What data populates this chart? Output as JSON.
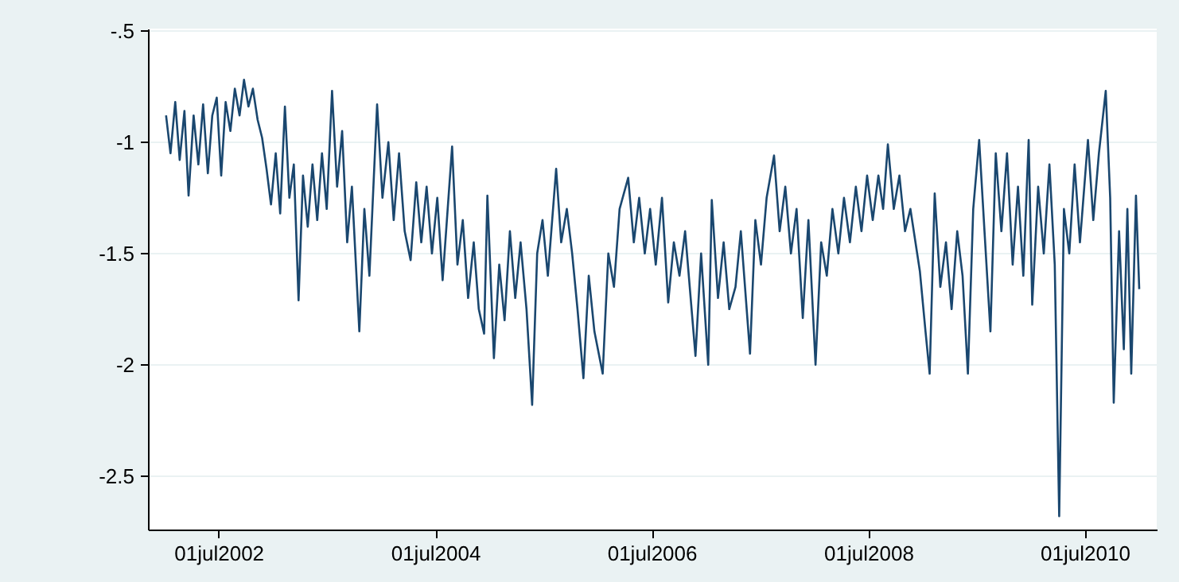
{
  "chart_data": {
    "type": "line",
    "x": [
      "2002-01-05",
      "2002-01-20",
      "2002-02-05",
      "2002-02-20",
      "2002-03-08",
      "2002-03-22",
      "2002-04-08",
      "2002-04-24",
      "2002-05-10",
      "2002-05-26",
      "2002-06-10",
      "2002-06-25",
      "2002-07-10",
      "2002-07-25",
      "2002-08-10",
      "2002-08-25",
      "2002-09-10",
      "2002-09-25",
      "2002-10-10",
      "2002-10-25",
      "2002-11-10",
      "2002-11-25",
      "2002-12-10",
      "2002-12-25",
      "2003-01-10",
      "2003-01-25",
      "2003-02-10",
      "2003-02-25",
      "2003-03-12",
      "2003-03-28",
      "2003-04-12",
      "2003-04-28",
      "2003-05-14",
      "2003-05-30",
      "2003-06-15",
      "2003-07-01",
      "2003-07-19",
      "2003-08-05",
      "2003-08-22",
      "2003-09-08",
      "2003-09-24",
      "2003-10-19",
      "2003-11-05",
      "2003-11-22",
      "2003-12-18",
      "2004-01-05",
      "2004-01-25",
      "2004-02-12",
      "2004-03-01",
      "2004-03-20",
      "2004-04-09",
      "2004-04-28",
      "2004-05-15",
      "2004-06-02",
      "2004-06-20",
      "2004-07-08",
      "2004-07-26",
      "2004-08-27",
      "2004-09-14",
      "2004-10-02",
      "2004-10-20",
      "2004-11-08",
      "2004-11-25",
      "2004-12-13",
      "2004-12-24",
      "2005-01-15",
      "2005-02-02",
      "2005-02-20",
      "2005-03-10",
      "2005-03-28",
      "2005-04-15",
      "2005-05-05",
      "2005-05-24",
      "2005-06-10",
      "2005-06-28",
      "2005-07-16",
      "2005-08-13",
      "2005-08-30",
      "2005-09-18",
      "2005-10-06",
      "2005-10-24",
      "2005-11-13",
      "2005-12-01",
      "2005-12-20",
      "2006-01-17",
      "2006-02-05",
      "2006-02-24",
      "2006-03-15",
      "2006-04-13",
      "2006-05-02",
      "2006-05-20",
      "2006-06-08",
      "2006-06-26",
      "2006-07-15",
      "2006-08-05",
      "2006-08-26",
      "2006-09-14",
      "2006-10-03",
      "2006-10-22",
      "2006-11-26",
      "2006-12-15",
      "2007-01-08",
      "2007-01-20",
      "2007-02-10",
      "2007-03-01",
      "2007-03-20",
      "2007-04-10",
      "2007-04-28",
      "2007-05-29",
      "2007-06-16",
      "2007-07-05",
      "2007-07-24",
      "2007-08-18",
      "2007-09-06",
      "2007-09-25",
      "2007-10-14",
      "2007-11-02",
      "2007-11-23",
      "2007-12-12",
      "2008-01-05",
      "2008-01-24",
      "2008-02-12",
      "2008-03-02",
      "2008-03-22",
      "2008-04-10",
      "2008-04-30",
      "2008-05-20",
      "2008-06-08",
      "2008-06-27",
      "2008-07-16",
      "2008-08-04",
      "2008-08-20",
      "2008-09-05",
      "2008-09-25",
      "2008-10-14",
      "2008-11-02",
      "2008-11-20",
      "2008-12-22",
      "2009-01-10",
      "2009-01-24",
      "2009-02-10",
      "2009-03-01",
      "2009-03-20",
      "2009-04-08",
      "2009-04-27",
      "2009-05-15",
      "2009-06-02",
      "2009-06-20",
      "2009-07-10",
      "2009-07-28",
      "2009-08-17",
      "2009-09-04",
      "2009-09-23",
      "2009-10-12",
      "2009-10-31",
      "2009-11-18",
      "2009-12-06",
      "2009-12-24",
      "2010-01-05",
      "2010-01-25",
      "2010-02-13",
      "2010-03-04",
      "2010-03-22",
      "2010-04-06",
      "2010-04-22",
      "2010-05-10",
      "2010-05-28",
      "2010-06-15",
      "2010-07-12",
      "2010-07-30",
      "2010-08-18",
      "2010-09-10",
      "2010-09-25",
      "2010-10-07",
      "2010-10-25",
      "2010-11-10",
      "2010-11-22",
      "2010-12-05",
      "2010-12-21",
      "2011-01-01"
    ],
    "series": [
      {
        "color": "#1a476f",
        "values": [
          -0.88,
          -1.05,
          -0.82,
          -1.08,
          -0.86,
          -1.24,
          -0.88,
          -1.1,
          -0.83,
          -1.14,
          -0.88,
          -0.8,
          -1.15,
          -0.82,
          -0.95,
          -0.76,
          -0.88,
          -0.72,
          -0.84,
          -0.76,
          -0.9,
          -0.98,
          -1.12,
          -1.28,
          -1.05,
          -1.32,
          -0.84,
          -1.25,
          -1.1,
          -1.71,
          -1.15,
          -1.38,
          -1.1,
          -1.35,
          -1.05,
          -1.3,
          -0.77,
          -1.2,
          -0.95,
          -1.45,
          -1.2,
          -1.85,
          -1.3,
          -1.6,
          -0.83,
          -1.25,
          -1.0,
          -1.35,
          -1.05,
          -1.4,
          -1.53,
          -1.18,
          -1.45,
          -1.2,
          -1.5,
          -1.25,
          -1.62,
          -1.02,
          -1.55,
          -1.35,
          -1.7,
          -1.45,
          -1.75,
          -1.86,
          -1.24,
          -1.97,
          -1.55,
          -1.8,
          -1.4,
          -1.7,
          -1.45,
          -1.75,
          -2.18,
          -1.5,
          -1.35,
          -1.6,
          -1.12,
          -1.45,
          -1.3,
          -1.5,
          -1.75,
          -2.06,
          -1.6,
          -1.85,
          -2.04,
          -1.5,
          -1.65,
          -1.3,
          -1.16,
          -1.45,
          -1.25,
          -1.5,
          -1.3,
          -1.55,
          -1.25,
          -1.72,
          -1.45,
          -1.6,
          -1.4,
          -1.96,
          -1.5,
          -2.0,
          -1.26,
          -1.7,
          -1.45,
          -1.75,
          -1.65,
          -1.4,
          -1.95,
          -1.35,
          -1.55,
          -1.25,
          -1.06,
          -1.4,
          -1.2,
          -1.5,
          -1.3,
          -1.79,
          -1.35,
          -2.0,
          -1.45,
          -1.6,
          -1.3,
          -1.5,
          -1.25,
          -1.45,
          -1.2,
          -1.4,
          -1.15,
          -1.35,
          -1.15,
          -1.3,
          -1.01,
          -1.3,
          -1.15,
          -1.4,
          -1.3,
          -1.58,
          -1.85,
          -2.04,
          -1.23,
          -1.65,
          -1.45,
          -1.75,
          -1.4,
          -1.6,
          -2.04,
          -1.3,
          -0.99,
          -1.4,
          -1.85,
          -1.05,
          -1.4,
          -1.05,
          -1.55,
          -1.2,
          -1.6,
          -0.99,
          -1.73,
          -1.2,
          -1.5,
          -1.1,
          -1.55,
          -2.68,
          -1.3,
          -1.5,
          -1.1,
          -1.45,
          -0.99,
          -1.35,
          -1.05,
          -0.77,
          -1.25,
          -2.17,
          -1.4,
          -1.93,
          -1.3,
          -2.04,
          -1.24,
          -1.66
        ]
      }
    ],
    "xlim": [
      "2001-11-05",
      "2011-03-01"
    ],
    "xticks": [
      {
        "value": "2002-07-01",
        "label": "01jul2002"
      },
      {
        "value": "2004-07-01",
        "label": "01jul2004"
      },
      {
        "value": "2006-07-01",
        "label": "01jul2006"
      },
      {
        "value": "2008-07-01",
        "label": "01jul2008"
      },
      {
        "value": "2010-07-01",
        "label": "01jul2010"
      }
    ],
    "ylim": [
      -2.74,
      -0.49
    ],
    "yticks": [
      {
        "value": -2.5,
        "label": "-2.5"
      },
      {
        "value": -2,
        "label": "-2"
      },
      {
        "value": -1.5,
        "label": "-1.5"
      },
      {
        "value": -1,
        "label": "-1"
      },
      {
        "value": -0.5,
        "label": "-.5"
      }
    ],
    "grid": "y",
    "marker": "none",
    "line_style": "solid"
  }
}
